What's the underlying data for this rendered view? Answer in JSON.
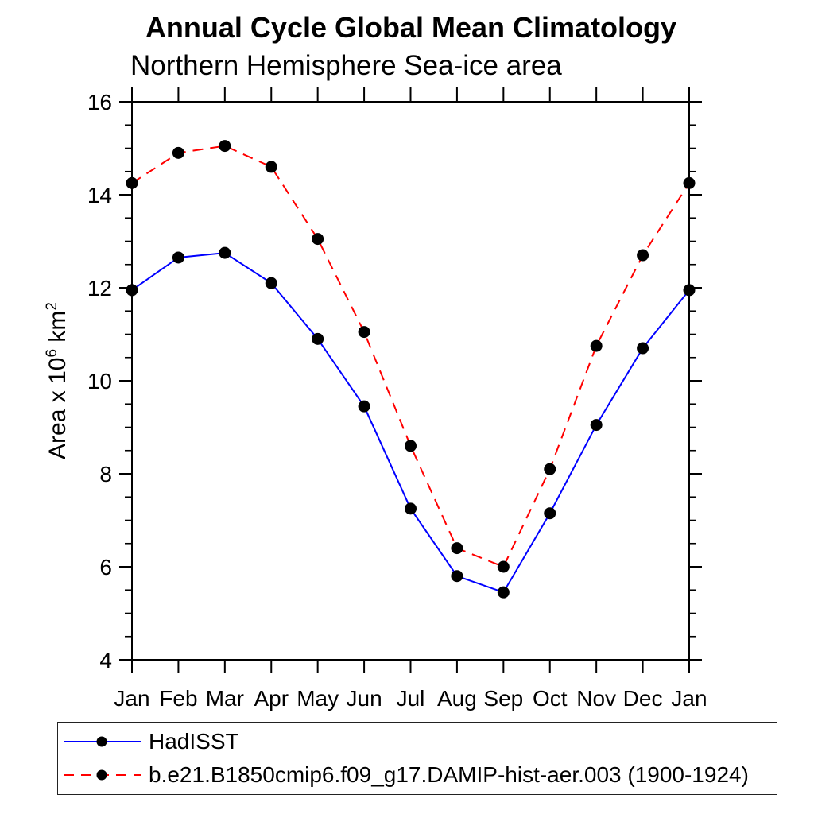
{
  "chart_data": {
    "type": "line",
    "title": "Annual Cycle Global Mean Climatology",
    "subtitle": "Northern Hemisphere Sea-ice area",
    "ylabel": "Area x 10⁶ km²",
    "ylabel_parts": {
      "pre": "Area x 10",
      "sup1": "6",
      "mid": " km",
      "sup2": "2"
    },
    "categories": [
      "Jan",
      "Feb",
      "Mar",
      "Apr",
      "May",
      "Jun",
      "Jul",
      "Aug",
      "Sep",
      "Oct",
      "Nov",
      "Dec",
      "Jan"
    ],
    "xlabel": "",
    "ylim": [
      4,
      16
    ],
    "ytick_major": [
      4,
      6,
      8,
      10,
      12,
      14,
      16
    ],
    "ytick_major_labels": [
      "4",
      "6",
      "8",
      "10",
      "12",
      "14",
      "16"
    ],
    "ytick_minor_step": 0.5,
    "grid": false,
    "legend_position": "bottom-left-box",
    "axis_color": "#000000",
    "marker_color": "#000000",
    "series": [
      {
        "name": "HadISST",
        "color": "#0000ff",
        "line_style": "solid",
        "marker": "circle",
        "values": [
          11.95,
          12.65,
          12.75,
          12.1,
          10.9,
          9.45,
          7.25,
          5.8,
          5.45,
          7.15,
          9.05,
          10.7,
          11.95
        ]
      },
      {
        "name": "b.e21.B1850cmip6.f09_g17.DAMIP-hist-aer.003 (1900-1924)",
        "color": "#ff0000",
        "line_style": "dashed",
        "marker": "circle",
        "values": [
          14.25,
          14.9,
          15.05,
          14.6,
          13.05,
          11.05,
          8.6,
          6.4,
          6.0,
          8.1,
          10.75,
          12.7,
          14.25
        ]
      }
    ]
  }
}
